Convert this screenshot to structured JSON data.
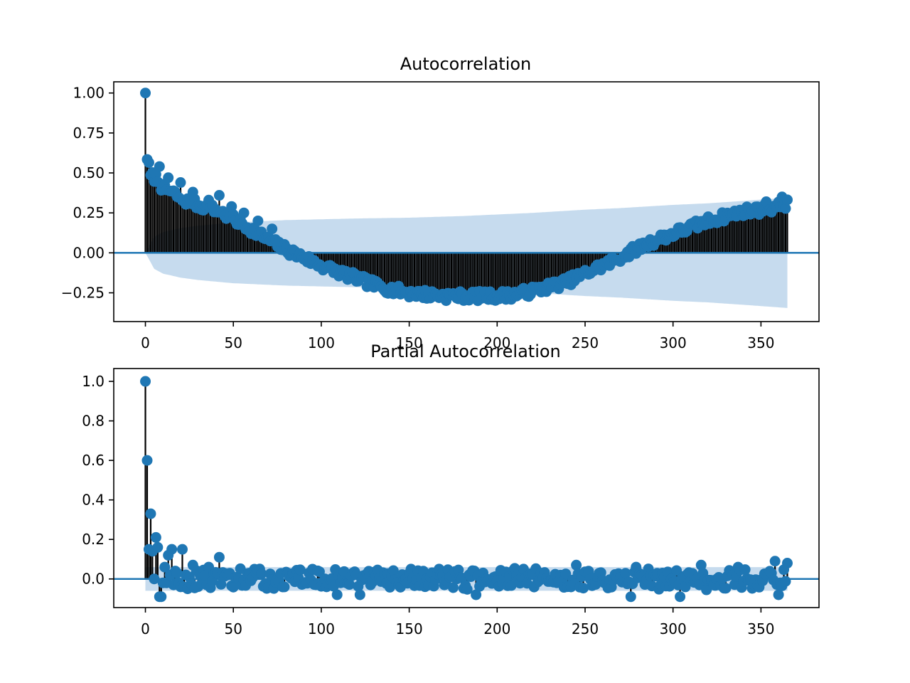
{
  "chart_data": [
    {
      "type": "stem",
      "title": "Autocorrelation",
      "xlabel": "",
      "ylabel": "",
      "xlim": [
        -18,
        383
      ],
      "ylim": [
        -0.43,
        1.07
      ],
      "xticks": [
        0,
        50,
        100,
        150,
        200,
        250,
        300,
        350
      ],
      "yticks": [
        1.0,
        0.75,
        0.5,
        0.25,
        0.0,
        -0.25
      ],
      "ytick_labels": [
        "1.00",
        "0.75",
        "0.50",
        "0.25",
        "0.00",
        "−0.25"
      ],
      "grid": false,
      "legend": "none",
      "max_lag": 365,
      "confidence_band": {
        "lags": [
          0,
          5,
          10,
          20,
          30,
          40,
          50,
          60,
          70,
          80,
          100,
          120,
          150,
          180,
          200,
          220,
          250,
          270,
          300,
          320,
          340,
          365
        ],
        "half_width": [
          0.0,
          0.1,
          0.13,
          0.155,
          0.17,
          0.18,
          0.19,
          0.195,
          0.2,
          0.205,
          0.21,
          0.215,
          0.22,
          0.23,
          0.24,
          0.25,
          0.27,
          0.28,
          0.3,
          0.31,
          0.325,
          0.345
        ]
      },
      "series": [
        {
          "values_by_lag_anchor": {
            "lags": [
              0,
              1,
              3,
              6,
              10,
              15,
              20,
              30,
              42,
              50,
              60,
              70,
              80,
              90,
              100,
              110,
              120,
              130,
              140,
              150,
              160,
              170,
              180,
              190,
              200,
              210,
              220,
              230,
              240,
              250,
              260,
              270,
              280,
              290,
              300,
              310,
              320,
              330,
              340,
              350,
              360,
              365
            ],
            "values": [
              1.0,
              0.6,
              0.48,
              0.47,
              0.4,
              0.38,
              0.34,
              0.3,
              0.26,
              0.21,
              0.15,
              0.08,
              0.02,
              -0.03,
              -0.08,
              -0.12,
              -0.16,
              -0.2,
              -0.23,
              -0.25,
              -0.26,
              -0.27,
              -0.27,
              -0.27,
              -0.27,
              -0.26,
              -0.24,
              -0.21,
              -0.18,
              -0.13,
              -0.08,
              -0.03,
              0.03,
              0.08,
              0.12,
              0.16,
              0.2,
              0.23,
              0.26,
              0.27,
              0.29,
              0.31
            ]
          },
          "highlight_points": [
            [
              42,
              0.36
            ],
            [
              8,
              0.54
            ],
            [
              13,
              0.47
            ],
            [
              20,
              0.44
            ],
            [
              27,
              0.38
            ],
            [
              36,
              0.33
            ],
            [
              49,
              0.29
            ],
            [
              56,
              0.25
            ],
            [
              64,
              0.2
            ],
            [
              72,
              0.15
            ],
            [
              353,
              0.32
            ],
            [
              362,
              0.35
            ]
          ]
        }
      ]
    },
    {
      "type": "stem",
      "title": "Partial Autocorrelation",
      "xlabel": "",
      "ylabel": "",
      "xlim": [
        -18,
        383
      ],
      "ylim": [
        -0.145,
        1.065
      ],
      "xticks": [
        0,
        50,
        100,
        150,
        200,
        250,
        300,
        350
      ],
      "yticks": [
        1.0,
        0.8,
        0.6,
        0.4,
        0.2,
        0.0
      ],
      "ytick_labels": [
        "1.0",
        "0.8",
        "0.6",
        "0.4",
        "0.2",
        "0.0"
      ],
      "grid": false,
      "legend": "none",
      "max_lag": 365,
      "confidence_band": {
        "half_width_constant": 0.06
      },
      "series": [
        {
          "first_values": [
            1.0,
            0.6,
            0.15,
            0.33,
            0.14,
            0.0,
            0.21,
            0.16,
            -0.09,
            -0.05,
            -0.02,
            0.06,
            -0.02,
            0.12,
            0.02,
            0.15,
            -0.03,
            0.04,
            0.03,
            -0.02,
            -0.04,
            0.15,
            -0.04,
            0.02,
            -0.05,
            0.01
          ],
          "noise_amplitude": 0.045,
          "highlight_points": [
            [
              42,
              0.11
            ],
            [
              27,
              0.07
            ],
            [
              36,
              0.06
            ],
            [
              109,
              -0.08
            ],
            [
              122,
              -0.08
            ],
            [
              167,
              0.05
            ],
            [
              188,
              -0.08
            ],
            [
              245,
              0.07
            ],
            [
              276,
              -0.09
            ],
            [
              279,
              0.06
            ],
            [
              304,
              -0.09
            ],
            [
              316,
              0.07
            ],
            [
              337,
              0.06
            ],
            [
              358,
              0.09
            ],
            [
              360,
              -0.08
            ],
            [
              365,
              0.08
            ],
            [
              9,
              -0.09
            ]
          ]
        }
      ]
    }
  ]
}
